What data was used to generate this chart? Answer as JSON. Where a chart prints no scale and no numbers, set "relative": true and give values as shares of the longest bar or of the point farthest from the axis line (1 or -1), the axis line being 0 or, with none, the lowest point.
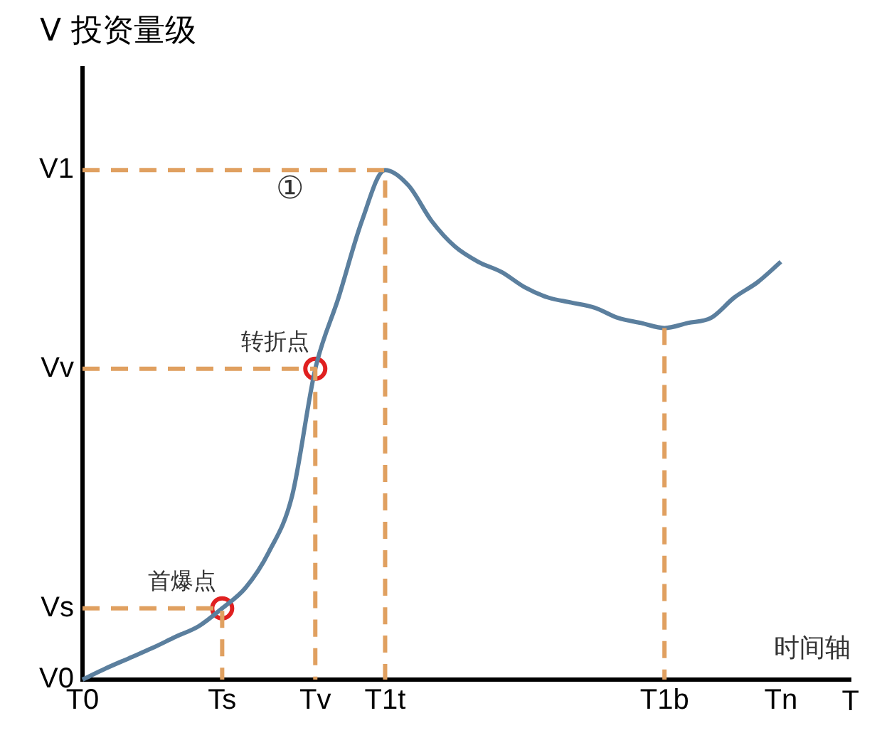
{
  "chart_data": {
    "type": "line",
    "relative": true,
    "ylabel": "V 投资量级",
    "xlabel": "T",
    "categories": [
      "T0",
      null,
      null,
      null,
      null,
      null,
      "Ts",
      null,
      null,
      null,
      "Tv",
      null,
      null,
      "T1t",
      null,
      null,
      null,
      null,
      null,
      null,
      null,
      null,
      null,
      null,
      null,
      "T1b",
      null,
      null,
      null,
      null,
      "Tn",
      null,
      null,
      null
    ],
    "grid": false,
    "legend": false,
    "series": [
      {
        "color": "#e0a060",
        "line_style": "dashed",
        "marker": "none",
        "x": [
          "T0",
          "T1t",
          "T1t"
        ],
        "values": [
          1,
          1,
          0
        ]
      },
      {
        "color": "#e0a060",
        "line_style": "dashed",
        "marker": "none",
        "x": [
          "T0",
          "Tv",
          "Tv"
        ],
        "values": [
          0.61,
          0.61,
          0
        ]
      },
      {
        "color": "#e0a060",
        "line_style": "dashed",
        "marker": "none",
        "x": [
          "T0",
          "Ts",
          "Ts"
        ],
        "values": [
          0.14,
          0.14,
          0
        ]
      },
      {
        "color": "#e0a060",
        "line_style": "dashed",
        "marker": "none",
        "x": [
          "T1b",
          "T1b"
        ],
        "values": [
          0.69,
          0
        ]
      },
      {
        "color": "#5b7f9e",
        "line_style": "solid",
        "marker": "none",
        "values": [
          0,
          0.022,
          0.042,
          0.062,
          0.084,
          0.105,
          0.14,
          0.18,
          0.25,
          0.36,
          0.61,
          0.75,
          0.9,
          1,
          0.97,
          0.9,
          0.85,
          0.82,
          0.8,
          0.77,
          0.75,
          0.74,
          0.73,
          0.71,
          0.7,
          0.69,
          0.7,
          0.71,
          0.75,
          0.78,
          0.82,
          null,
          null,
          null
        ]
      },
      {
        "type": "scatter",
        "color": "#e02020",
        "marker": "circle",
        "x": [
          "Ts",
          "Tv"
        ],
        "values": [
          0.14,
          0.61
        ]
      }
    ],
    "annotations": [
      {
        "text": "首爆点",
        "x": "Ts",
        "y": 0.14
      },
      {
        "text": "转折点",
        "x": "Tv",
        "y": 0.61
      },
      "V1",
      "Vv",
      "Vs",
      "V0",
      "①",
      "时间轴"
    ]
  }
}
